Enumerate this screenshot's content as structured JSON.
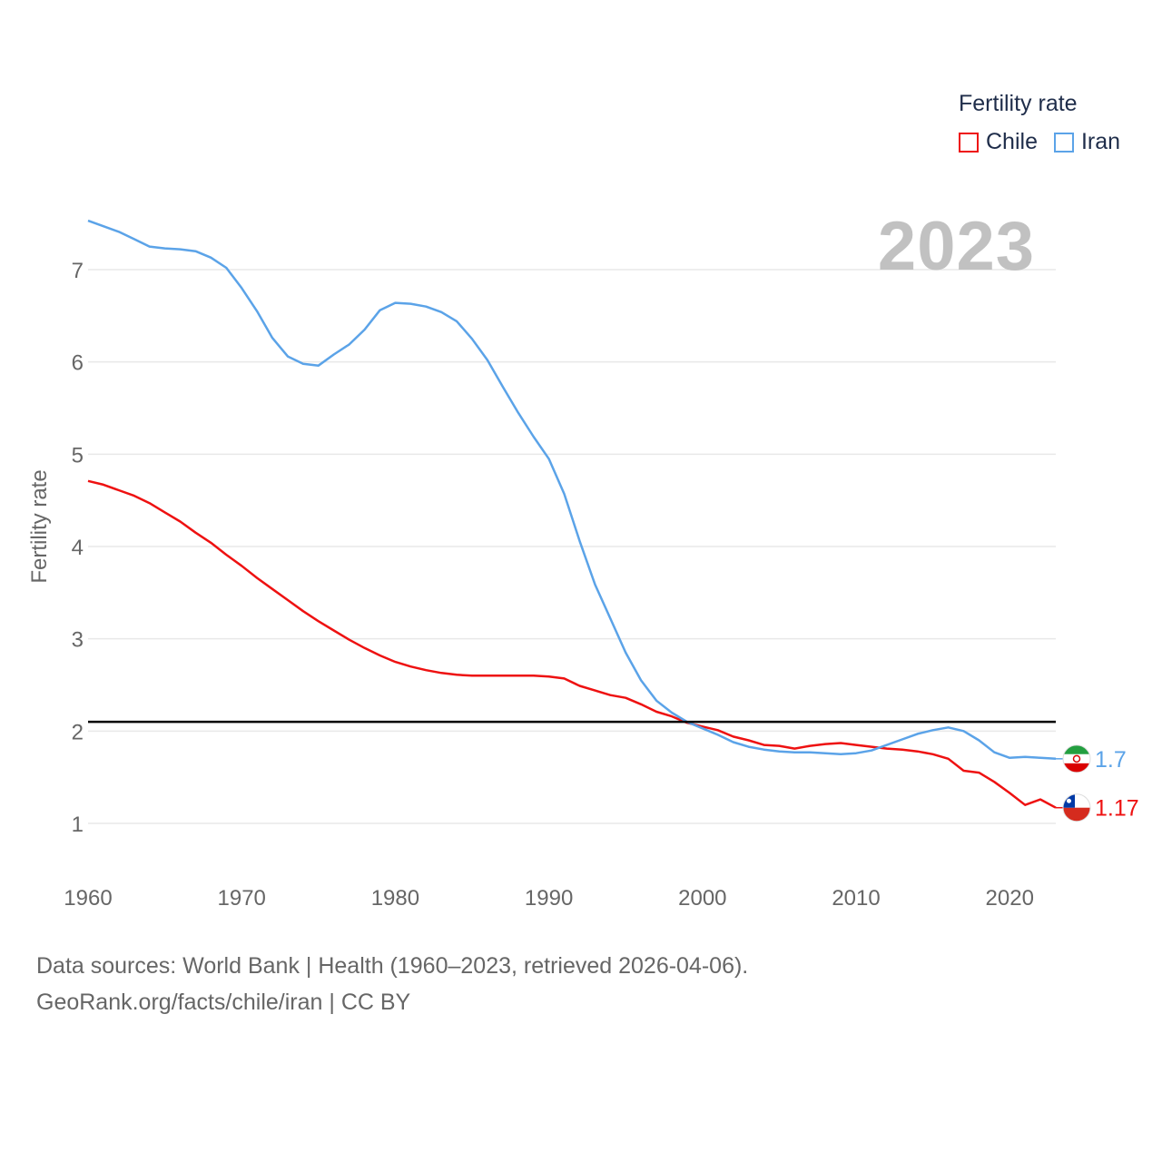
{
  "legend": {
    "title": "Fertility rate"
  },
  "year_label": "2023",
  "source": {
    "line1": "Data sources: World Bank | Health (1960–2023, retrieved 2026-04-06).",
    "line2": "GeoRank.org/facts/chile/iran | CC BY"
  },
  "colors": {
    "Chile": "#ee1111",
    "Iran": "#5ba3e8",
    "grid": "#e8e8e8",
    "axis_text": "#666666",
    "reference": "#000000"
  },
  "chart_data": {
    "type": "line",
    "title": "",
    "xlabel": "",
    "ylabel": "Fertility rate",
    "xlim": [
      1960,
      2023
    ],
    "ylim": [
      0.4,
      7.6
    ],
    "x_ticks": [
      1960,
      1970,
      1980,
      1990,
      2000,
      2010,
      2020
    ],
    "y_ticks": [
      1,
      2,
      3,
      4,
      5,
      6,
      7
    ],
    "reference_line": 2.1,
    "x": [
      1960,
      1961,
      1962,
      1963,
      1964,
      1965,
      1966,
      1967,
      1968,
      1969,
      1970,
      1971,
      1972,
      1973,
      1974,
      1975,
      1976,
      1977,
      1978,
      1979,
      1980,
      1981,
      1982,
      1983,
      1984,
      1985,
      1986,
      1987,
      1988,
      1989,
      1990,
      1991,
      1992,
      1993,
      1994,
      1995,
      1996,
      1997,
      1998,
      1999,
      2000,
      2001,
      2002,
      2003,
      2004,
      2005,
      2006,
      2007,
      2008,
      2009,
      2010,
      2011,
      2012,
      2013,
      2014,
      2015,
      2016,
      2017,
      2018,
      2019,
      2020,
      2021,
      2022,
      2023
    ],
    "series": [
      {
        "name": "Chile",
        "end_label": "1.17",
        "flag": "chile-flag",
        "values": [
          4.71,
          4.67,
          4.61,
          4.55,
          4.47,
          4.37,
          4.27,
          4.15,
          4.04,
          3.91,
          3.79,
          3.66,
          3.54,
          3.42,
          3.3,
          3.19,
          3.09,
          2.99,
          2.9,
          2.82,
          2.75,
          2.7,
          2.66,
          2.63,
          2.61,
          2.6,
          2.6,
          2.6,
          2.6,
          2.6,
          2.59,
          2.57,
          2.49,
          2.44,
          2.39,
          2.36,
          2.29,
          2.21,
          2.16,
          2.09,
          2.05,
          2.01,
          1.94,
          1.9,
          1.85,
          1.84,
          1.81,
          1.84,
          1.86,
          1.87,
          1.85,
          1.83,
          1.81,
          1.8,
          1.78,
          1.75,
          1.7,
          1.57,
          1.55,
          1.45,
          1.33,
          1.2,
          1.26,
          1.17
        ]
      },
      {
        "name": "Iran",
        "end_label": "1.7",
        "flag": "iran-flag",
        "values": [
          7.53,
          7.47,
          7.41,
          7.33,
          7.25,
          7.23,
          7.22,
          7.2,
          7.13,
          7.02,
          6.8,
          6.55,
          6.26,
          6.06,
          5.98,
          5.96,
          6.08,
          6.19,
          6.35,
          6.56,
          6.64,
          6.63,
          6.6,
          6.54,
          6.44,
          6.25,
          6.02,
          5.73,
          5.45,
          5.19,
          4.95,
          4.57,
          4.06,
          3.59,
          3.22,
          2.85,
          2.55,
          2.33,
          2.2,
          2.1,
          2.03,
          1.96,
          1.88,
          1.83,
          1.8,
          1.78,
          1.77,
          1.77,
          1.76,
          1.75,
          1.76,
          1.79,
          1.85,
          1.91,
          1.97,
          2.01,
          2.04,
          2.0,
          1.9,
          1.77,
          1.71,
          1.72,
          1.71,
          1.7
        ]
      }
    ]
  }
}
